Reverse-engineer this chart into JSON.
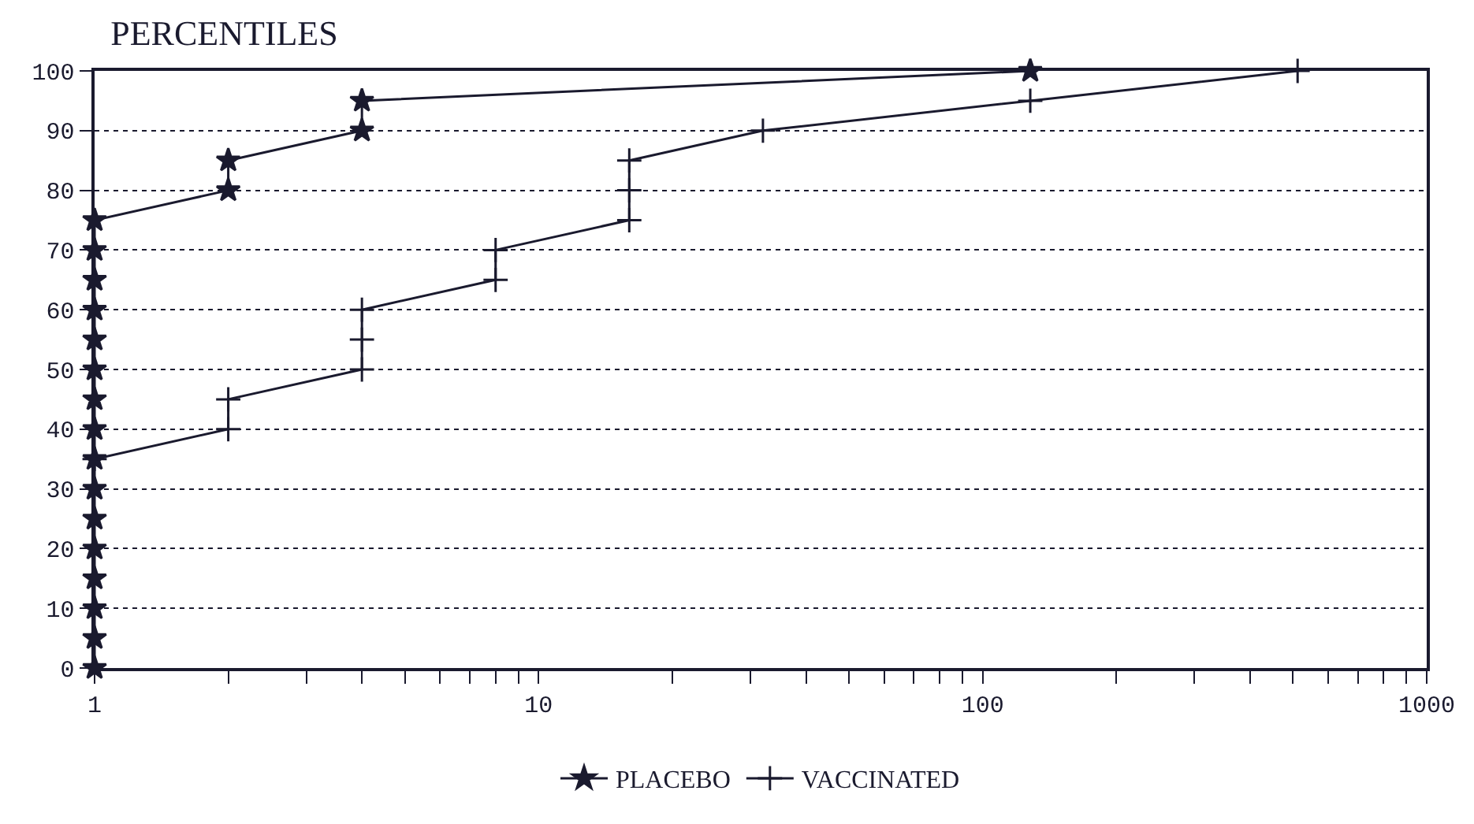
{
  "chart_data": {
    "type": "line",
    "title": "PERCENTILES",
    "log": "x",
    "grid": "y",
    "legend": "bottom",
    "line_style": "solid",
    "xlim": [
      1,
      1000
    ],
    "xticks": [
      1,
      {
        "value": 2,
        "label": null
      },
      {
        "value": 3,
        "label": null
      },
      {
        "value": 4,
        "label": null
      },
      {
        "value": 5,
        "label": null
      },
      {
        "value": 6,
        "label": null
      },
      {
        "value": 7,
        "label": null
      },
      {
        "value": 8,
        "label": null
      },
      {
        "value": 9,
        "label": null
      },
      10,
      {
        "value": 20,
        "label": null
      },
      {
        "value": 30,
        "label": null
      },
      {
        "value": 40,
        "label": null
      },
      {
        "value": 50,
        "label": null
      },
      {
        "value": 60,
        "label": null
      },
      {
        "value": 70,
        "label": null
      },
      {
        "value": 80,
        "label": null
      },
      {
        "value": 90,
        "label": null
      },
      100,
      {
        "value": 200,
        "label": null
      },
      {
        "value": 300,
        "label": null
      },
      {
        "value": 400,
        "label": null
      },
      {
        "value": 500,
        "label": null
      },
      {
        "value": 600,
        "label": null
      },
      {
        "value": 700,
        "label": null
      },
      {
        "value": 800,
        "label": null
      },
      {
        "value": 900,
        "label": null
      },
      1000
    ],
    "ylim": [
      0,
      100
    ],
    "yticks": [
      0,
      10,
      20,
      30,
      40,
      50,
      60,
      70,
      80,
      90,
      100
    ],
    "series": [
      {
        "name": "PLACEBO",
        "color": "#1a1a2e",
        "marker": "star",
        "x": [
          1,
          1,
          1,
          1,
          1,
          1,
          1,
          1,
          1,
          1,
          1,
          1,
          1,
          1,
          1,
          1,
          2,
          2,
          4,
          4,
          128
        ],
        "values": [
          0,
          5,
          10,
          15,
          20,
          25,
          30,
          35,
          40,
          45,
          50,
          55,
          60,
          65,
          70,
          75,
          80,
          85,
          90,
          95,
          100
        ]
      },
      {
        "name": "VACCINATED",
        "color": "#1a1a2e",
        "marker": "cross",
        "x": [
          1,
          2,
          2,
          4,
          4,
          4,
          8,
          8,
          16,
          16,
          16,
          32,
          128,
          512
        ],
        "values": [
          35,
          40,
          45,
          50,
          55,
          60,
          65,
          70,
          75,
          80,
          85,
          90,
          95,
          100
        ]
      }
    ]
  }
}
